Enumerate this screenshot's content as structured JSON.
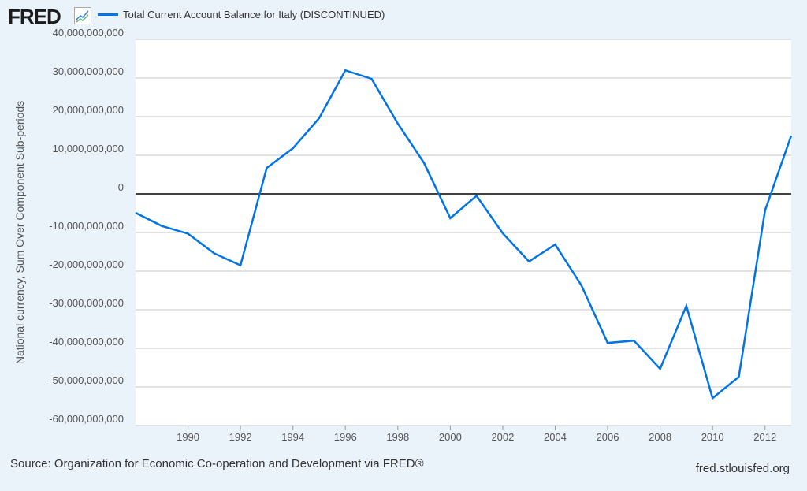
{
  "header": {
    "logo": "FRED",
    "legend_label": "Total Current Account Balance for Italy (DISCONTINUED)"
  },
  "footer": {
    "source": "Source: Organization for Economic Co-operation and Development via FRED®",
    "site": "fred.stlouisfed.org"
  },
  "chart_data": {
    "type": "line",
    "title": "Total Current Account Balance for Italy (DISCONTINUED)",
    "xlabel": "",
    "ylabel": "National currency, Sum Over Component Sub-periods",
    "xlim": [
      1988,
      2013
    ],
    "ylim": [
      -60000000000,
      40000000000
    ],
    "x_ticks": [
      1990,
      1992,
      1994,
      1996,
      1998,
      2000,
      2002,
      2004,
      2006,
      2008,
      2010,
      2012
    ],
    "y_ticks": [
      40000000000,
      30000000000,
      20000000000,
      10000000000,
      0,
      -10000000000,
      -20000000000,
      -30000000000,
      -40000000000,
      -50000000000,
      -60000000000
    ],
    "y_tick_labels": [
      "40,000,000,000",
      "30,000,000,000",
      "20,000,000,000",
      "10,000,000,000",
      "0",
      "-10,000,000,000",
      "-20,000,000,000",
      "-30,000,000,000",
      "-40,000,000,000",
      "-50,000,000,000",
      "-60,000,000,000"
    ],
    "grid": true,
    "color": "#0073e6",
    "series": [
      {
        "name": "Total Current Account Balance for Italy (DISCONTINUED)",
        "x": [
          1988,
          1989,
          1990,
          1991,
          1992,
          1993,
          1994,
          1995,
          1996,
          1997,
          1998,
          1999,
          2000,
          2001,
          2002,
          2003,
          2004,
          2005,
          2006,
          2007,
          2008,
          2009,
          2010,
          2011,
          2012,
          2013
        ],
        "values": [
          -4900000000,
          -8300000000,
          -10300000000,
          -15400000000,
          -18500000000,
          6700000000,
          11800000000,
          19600000000,
          32000000000,
          29800000000,
          18200000000,
          8000000000,
          -6300000000,
          -500000000,
          -10200000000,
          -17500000000,
          -13100000000,
          -23700000000,
          -38600000000,
          -38000000000,
          -45300000000,
          -29000000000,
          -52900000000,
          -47400000000,
          -4300000000,
          15100000000
        ]
      }
    ]
  }
}
